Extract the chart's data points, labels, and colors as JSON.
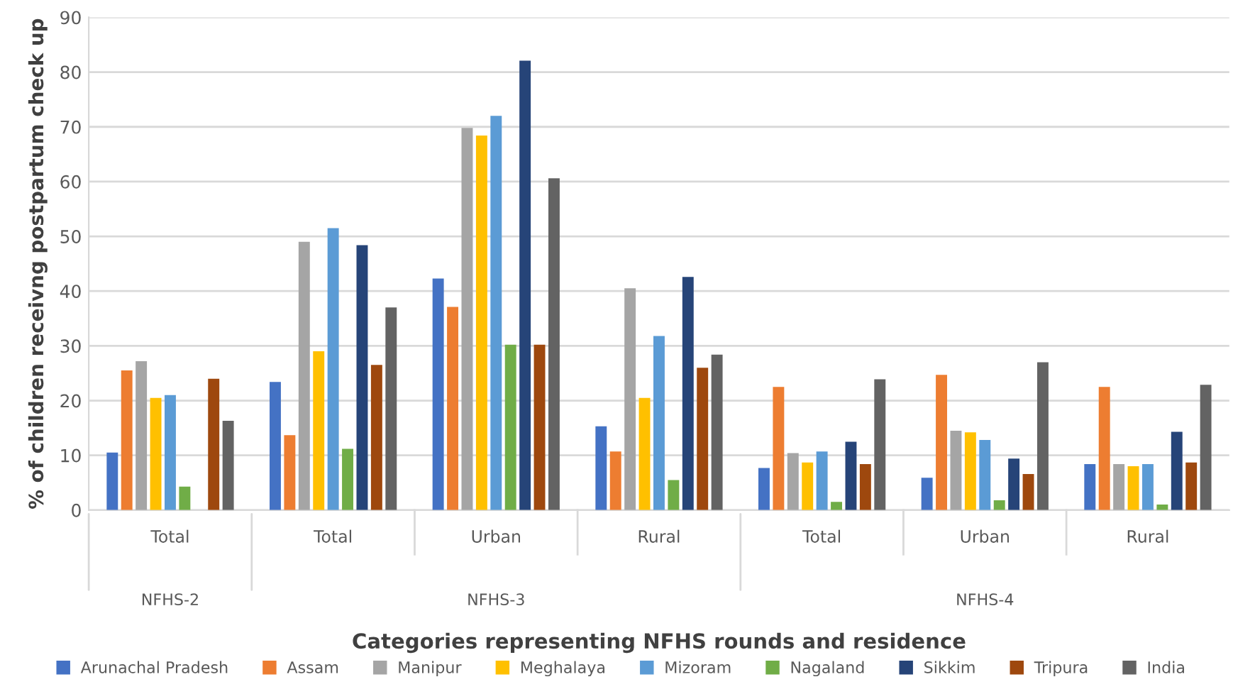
{
  "chart_data": {
    "type": "bar",
    "xlabel": "Categories representing NFHS rounds and residence",
    "ylabel": "% of children receivng postpartum check up",
    "categories": [
      "Total",
      "Total",
      "Urban",
      "Rural",
      "Total",
      "Urban",
      "Rural"
    ],
    "annotations": [
      "NFHS-2",
      "NFHS-3",
      "NFHS-4"
    ],
    "ylim": [
      0,
      90
    ],
    "yticks": [
      0,
      10,
      20,
      30,
      40,
      50,
      60,
      70,
      80,
      90
    ],
    "grid": "y",
    "legend": "bottom",
    "series": [
      {
        "name": "Arunachal Pradesh",
        "color": "#4472c4",
        "values": [
          10.5,
          23.4,
          42.3,
          15.3,
          7.7,
          5.9,
          8.4
        ]
      },
      {
        "name": "Assam",
        "color": "#ed7d31",
        "values": [
          25.5,
          13.7,
          37.1,
          10.7,
          22.5,
          24.7,
          22.5
        ]
      },
      {
        "name": "Manipur",
        "color": "#a5a5a5",
        "values": [
          27.2,
          49,
          69.8,
          40.5,
          10.4,
          14.5,
          8.4
        ]
      },
      {
        "name": "Meghalaya",
        "color": "#ffc000",
        "values": [
          20.5,
          29,
          68.4,
          20.5,
          8.7,
          14.2,
          8
        ]
      },
      {
        "name": "Mizoram",
        "color": "#5b9bd5",
        "values": [
          21,
          51.5,
          72,
          31.8,
          10.7,
          12.8,
          8.4
        ]
      },
      {
        "name": "Nagaland",
        "color": "#70ad47",
        "values": [
          4.3,
          11.2,
          30.2,
          5.5,
          1.5,
          1.8,
          1
        ]
      },
      {
        "name": "Sikkim",
        "color": "#264478",
        "values": [
          null,
          48.4,
          82.1,
          42.6,
          12.5,
          9.4,
          14.3
        ]
      },
      {
        "name": "Tripura",
        "color": "#9e480e",
        "values": [
          24,
          26.5,
          30.2,
          26,
          8.4,
          6.6,
          8.7
        ]
      },
      {
        "name": "India",
        "color": "#636363",
        "values": [
          16.3,
          37,
          60.6,
          28.4,
          23.9,
          27,
          22.9
        ]
      }
    ]
  }
}
